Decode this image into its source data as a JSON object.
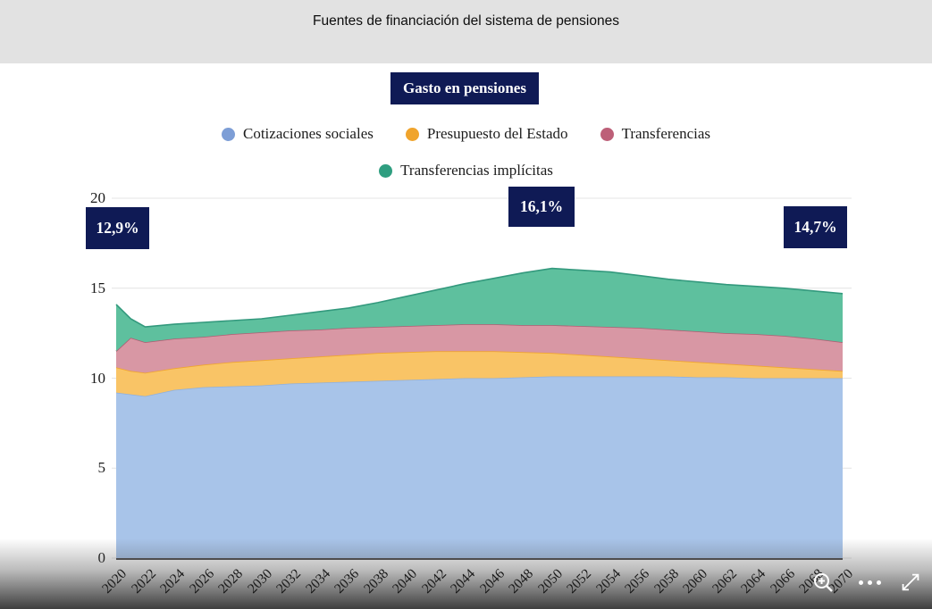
{
  "header": {
    "title": "Fuentes de financiación del sistema de pensiones"
  },
  "toolbar": {
    "button_label": "Gasto en pensiones"
  },
  "annotations": [
    {
      "label": "12,9%"
    },
    {
      "label": "16,1%"
    },
    {
      "label": "14,7%"
    }
  ],
  "footer": {
    "icons": [
      "zoom-in-icon",
      "more-options-icon",
      "expand-icon"
    ]
  },
  "colors": {
    "navy": "#0f1a55",
    "header_bg": "#e2e2e2",
    "grid": "#e4e4e4"
  },
  "chart_data": {
    "type": "area",
    "stacked": true,
    "title": "Fuentes de financiación del sistema de pensiones",
    "xlabel": "",
    "ylabel": "",
    "ylim": [
      0,
      20
    ],
    "yticks": [
      0,
      5,
      10,
      15,
      20
    ],
    "xticks": [
      2020,
      2022,
      2024,
      2026,
      2028,
      2030,
      2032,
      2034,
      2036,
      2038,
      2040,
      2042,
      2044,
      2046,
      2048,
      2050,
      2052,
      2054,
      2056,
      2058,
      2060,
      2062,
      2064,
      2066,
      2068,
      2070
    ],
    "grid": true,
    "legend_position": "top",
    "x": [
      2020,
      2021,
      2022,
      2024,
      2026,
      2028,
      2030,
      2032,
      2034,
      2036,
      2038,
      2040,
      2042,
      2044,
      2046,
      2048,
      2050,
      2052,
      2054,
      2056,
      2058,
      2060,
      2062,
      2064,
      2066,
      2068,
      2070
    ],
    "series": [
      {
        "name": "Cotizaciones sociales",
        "fill": "#a8c4e9",
        "stroke": "#8fb0de",
        "dot": "#7d9ed6",
        "values": [
          9.2,
          9.1,
          9.0,
          9.35,
          9.5,
          9.55,
          9.6,
          9.7,
          9.75,
          9.8,
          9.85,
          9.9,
          9.95,
          10.0,
          10.0,
          10.05,
          10.1,
          10.1,
          10.1,
          10.1,
          10.1,
          10.05,
          10.05,
          10.0,
          10.0,
          10.0,
          10.0
        ]
      },
      {
        "name": "Presupuesto del Estado",
        "fill": "#f9c466",
        "stroke": "#f0a62e",
        "dot": "#f0a42c",
        "values": [
          1.4,
          1.3,
          1.3,
          1.2,
          1.25,
          1.35,
          1.4,
          1.4,
          1.45,
          1.5,
          1.55,
          1.55,
          1.55,
          1.5,
          1.5,
          1.4,
          1.3,
          1.2,
          1.1,
          1.0,
          0.9,
          0.85,
          0.75,
          0.7,
          0.6,
          0.5,
          0.4
        ]
      },
      {
        "name": "Transferencias",
        "fill": "#d897a4",
        "stroke": "#b05c72",
        "dot": "#bd5f78",
        "values": [
          0.9,
          1.85,
          1.7,
          1.65,
          1.55,
          1.55,
          1.55,
          1.55,
          1.5,
          1.5,
          1.45,
          1.45,
          1.45,
          1.5,
          1.5,
          1.5,
          1.55,
          1.6,
          1.65,
          1.7,
          1.7,
          1.7,
          1.7,
          1.75,
          1.75,
          1.7,
          1.6
        ]
      },
      {
        "name": "Transferencias implícitas",
        "fill": "#5ec09e",
        "stroke": "#33997d",
        "dot": "#2f9e80",
        "values": [
          2.6,
          1.05,
          0.85,
          0.8,
          0.8,
          0.75,
          0.75,
          0.85,
          1.0,
          1.1,
          1.35,
          1.65,
          1.95,
          2.25,
          2.55,
          2.9,
          3.15,
          3.1,
          3.05,
          2.9,
          2.8,
          2.75,
          2.7,
          2.65,
          2.65,
          2.65,
          2.7
        ]
      }
    ]
  }
}
